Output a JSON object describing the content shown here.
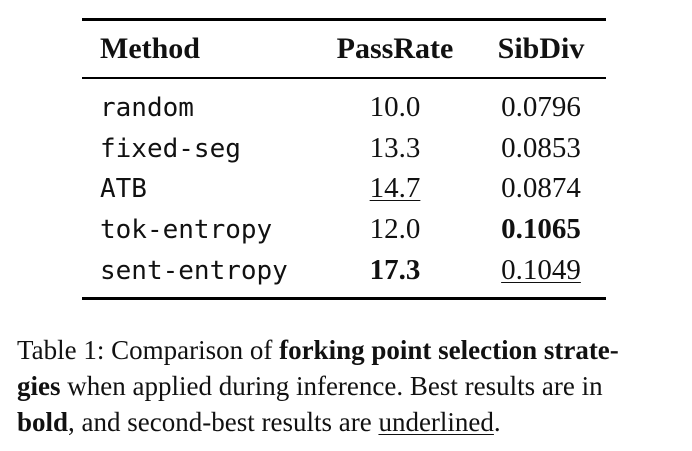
{
  "table": {
    "headers": {
      "method": "Method",
      "passrate": "PassRate",
      "sibdiv": "SibDiv"
    },
    "rows": [
      {
        "method": "random",
        "passrate": "10.0",
        "sibdiv": "0.0796"
      },
      {
        "method": "fixed-seg",
        "passrate": "13.3",
        "sibdiv": "0.0853"
      },
      {
        "method": "ATB",
        "passrate": "14.7",
        "sibdiv": "0.0874"
      },
      {
        "method": "tok-entropy",
        "passrate": "12.0",
        "sibdiv": "0.1065"
      },
      {
        "method": "sent-entropy",
        "passrate": "17.3",
        "sibdiv": "0.1049"
      }
    ]
  },
  "caption": {
    "line1_prefix": "Table 1: Comparison of ",
    "line1_bold": "forking point selection strate-",
    "line2_bold": "gies",
    "line2_rest": " when applied during inference. Best results are in",
    "line3_bold": "bold",
    "line3_mid": ", and second-best results are ",
    "line3_underlined": "underlined",
    "line3_end": "."
  }
}
